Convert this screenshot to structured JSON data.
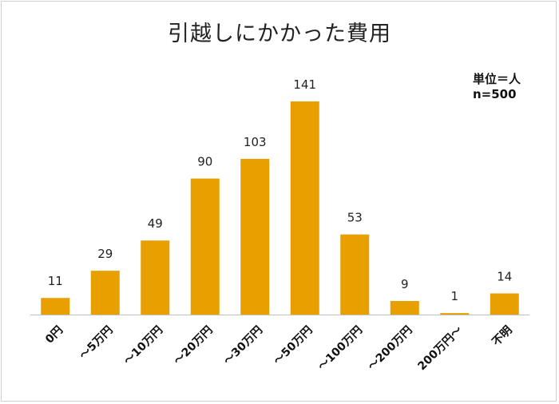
{
  "chart_data": {
    "type": "bar",
    "title": "引越しにかかった費用",
    "unit_label": "単位＝人",
    "n_label": "n=500",
    "categories": [
      "0円",
      "～5万円",
      "～10万円",
      "～20万円",
      "～30万円",
      "～50万円",
      "～100万円",
      "～200万円",
      "200万円～",
      "不明"
    ],
    "values": [
      11,
      29,
      49,
      90,
      103,
      141,
      53,
      9,
      1,
      14
    ],
    "ylim": [
      0,
      150
    ],
    "grid": false,
    "legend": "none",
    "bar_color": "#E8A000"
  }
}
